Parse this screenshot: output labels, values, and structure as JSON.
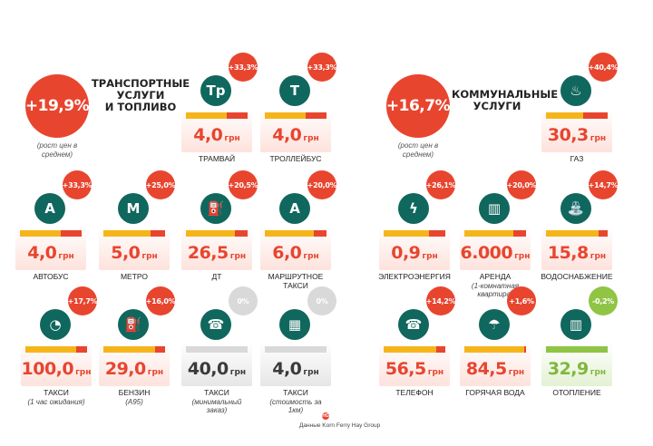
{
  "transport": {
    "avg_pct": "+19,9%",
    "avg_note": "(рост цен в среднем)",
    "title_line1": "ТРАНСПОРТНЫЕ",
    "title_line2": "УСЛУГИ",
    "title_line3": "И ТОПЛИВО"
  },
  "utilities": {
    "avg_pct": "+16,7%",
    "avg_note": "(рост цен в среднем)",
    "title_line1": "КОММУНАЛЬНЫЕ",
    "title_line2": "УСЛУГИ"
  },
  "unit": "грн",
  "colors": {
    "red": "#e8452f",
    "yellow": "#f5b51a",
    "teal": "#10675d",
    "green": "#8fc445",
    "grey": "#d9d9d9"
  },
  "items": [
    {
      "id": "tram",
      "pct": "+33,3%",
      "price": "4,0",
      "label": "ТРАМВАЙ",
      "sub": "",
      "icon": "tram-icon",
      "icon_text": "Тр",
      "state": "up",
      "fill": 0.66
    },
    {
      "id": "trolley",
      "pct": "+33,3%",
      "price": "4,0",
      "label": "ТРОЛЛЕЙБУС",
      "sub": "",
      "icon": "trolleybus-icon",
      "icon_text": "Т",
      "state": "up",
      "fill": 0.66
    },
    {
      "id": "bus",
      "pct": "+33,3%",
      "price": "4,0",
      "label": "АВТОБУС",
      "sub": "",
      "icon": "bus-icon",
      "icon_text": "А",
      "state": "up",
      "fill": 0.66
    },
    {
      "id": "metro",
      "pct": "+25,0%",
      "price": "5,0",
      "label": "МЕТРО",
      "sub": "",
      "icon": "metro-icon",
      "icon_text": "М",
      "state": "up",
      "fill": 0.76
    },
    {
      "id": "diesel",
      "pct": "+20,5%",
      "price": "26,5",
      "label": "ДТ",
      "sub": "",
      "icon": "fuel-pump-icon",
      "icon_text": "⛽",
      "state": "up",
      "fill": 0.8
    },
    {
      "id": "minibus",
      "pct": "+20,0%",
      "price": "6,0",
      "label": "МАРШРУТНОЕ",
      "sub": "ТАКСИ",
      "icon": "minibus-taxi-icon",
      "icon_text": "А",
      "state": "up",
      "fill": 0.8
    },
    {
      "id": "taxi-wait",
      "pct": "+17,7%",
      "price": "100,0",
      "label": "ТАКСИ",
      "sub": "(1 час ожидания)",
      "icon": "taxi-meter-icon",
      "icon_text": "◔",
      "state": "up",
      "fill": 0.83
    },
    {
      "id": "petrol",
      "pct": "+16,0%",
      "price": "29,0",
      "label": "БЕНЗИН",
      "sub": "(А95)",
      "icon": "petrol-pump-icon",
      "icon_text": "⛽",
      "state": "up",
      "fill": 0.84
    },
    {
      "id": "taxi-min",
      "pct": "0%",
      "price": "40,0",
      "label": "ТАКСИ",
      "sub": "(минимальный заказ)",
      "icon": "taxi-phone-icon",
      "icon_text": "☎",
      "state": "flat",
      "fill": 1.0
    },
    {
      "id": "taxi-km",
      "pct": "0%",
      "price": "4,0",
      "label": "ТАКСИ",
      "sub": "(стоимость за 1км)",
      "icon": "taxi-checker-icon",
      "icon_text": "▦",
      "state": "flat",
      "fill": 1.0
    },
    {
      "id": "gas",
      "pct": "+40,4%",
      "price": "30,3",
      "label": "ГАЗ",
      "sub": "",
      "icon": "gas-flame-icon",
      "icon_text": "♨",
      "state": "up",
      "fill": 0.6
    },
    {
      "id": "electricity",
      "pct": "+26,1%",
      "price": "0,9",
      "label": "ЭЛЕКТРОЭНЕРГИЯ",
      "sub": "",
      "icon": "lightning-icon",
      "icon_text": "ϟ",
      "state": "up",
      "fill": 0.74
    },
    {
      "id": "rent",
      "pct": "+20,0%",
      "price": "6.000",
      "label": "АРЕНДА",
      "sub": "(1-комнатная квартира)",
      "icon": "apartment-building-icon",
      "icon_text": "▥",
      "state": "up",
      "fill": 0.8
    },
    {
      "id": "water",
      "pct": "+14,7%",
      "price": "15,8",
      "label": "ВОДОСНАБЖЕНИЕ",
      "sub": "",
      "icon": "water-tap-icon",
      "icon_text": "⛲",
      "state": "up",
      "fill": 0.85
    },
    {
      "id": "phone",
      "pct": "+14,2%",
      "price": "56,5",
      "label": "ТЕЛЕФОН",
      "sub": "",
      "icon": "telephone-icon",
      "icon_text": "☎",
      "state": "up",
      "fill": 0.86
    },
    {
      "id": "hotwater",
      "pct": "+1,6%",
      "price": "84,5",
      "label": "ГОРЯЧАЯ ВОДА",
      "sub": "",
      "icon": "shower-icon",
      "icon_text": "☂",
      "state": "up",
      "fill": 0.97
    },
    {
      "id": "heating",
      "pct": "-0,2%",
      "price": "32,9",
      "label": "ОТОПЛЕНИЕ",
      "sub": "",
      "icon": "radiator-icon",
      "icon_text": "▥",
      "state": "down",
      "fill": 1.0
    }
  ],
  "footer": {
    "text": "Данные Korn Ferry Hay Group",
    "logo": "HG"
  }
}
